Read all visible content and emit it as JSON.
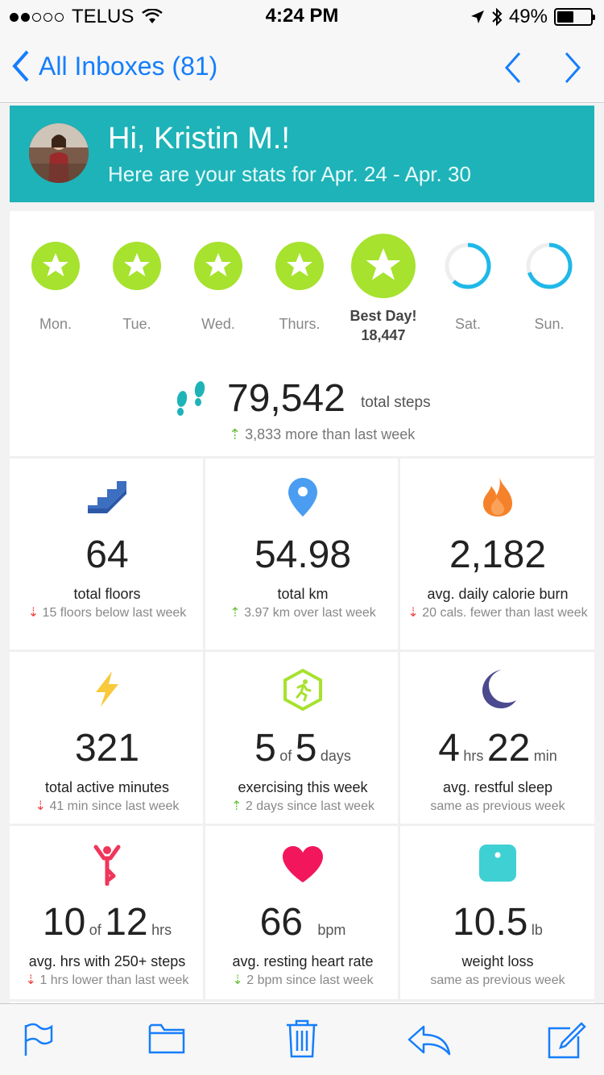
{
  "status_bar": {
    "carrier": "TELUS",
    "time": "4:24 PM",
    "battery": "49%",
    "battery_level": 0.49
  },
  "nav": {
    "back_label": "All Inboxes (81)"
  },
  "header": {
    "greeting": "Hi, Kristin M.!",
    "subtitle": "Here are your stats for Apr. 24 - Apr. 30",
    "color": "#1eb3b8"
  },
  "days": [
    {
      "label": "Mon.",
      "achieved": true
    },
    {
      "label": "Tue.",
      "achieved": true
    },
    {
      "label": "Wed.",
      "achieved": true
    },
    {
      "label": "Thurs.",
      "achieved": true
    },
    {
      "label": "Best Day!",
      "value": "18,447",
      "achieved": true,
      "best": true
    },
    {
      "label": "Sat.",
      "achieved": false,
      "progress": 0.62
    },
    {
      "label": "Sun.",
      "achieved": false,
      "progress": 0.7
    }
  ],
  "steps": {
    "total": "79,542",
    "unit": "total steps",
    "delta": "3,833 more than last week"
  },
  "tiles": [
    {
      "icon": "stairs-icon",
      "value": "64",
      "label": "total floors",
      "delta": "15 floors below last week",
      "dir": "down"
    },
    {
      "icon": "location-pin-icon",
      "value": "54.98",
      "label": "total km",
      "delta": "3.97 km over last week",
      "dir": "up"
    },
    {
      "icon": "flame-icon",
      "value": "2,182",
      "label": "avg. daily calorie burn",
      "delta": "20 cals. fewer than last week",
      "dir": "down"
    },
    {
      "icon": "lightning-icon",
      "value": "321",
      "label": "total active minutes",
      "delta": "41 min since last week",
      "dir": "down"
    },
    {
      "icon": "exercise-hexagon-icon",
      "value_a": "5",
      "of": "of",
      "value_b": "5",
      "unit": "days",
      "label": "exercising this week",
      "delta": "2 days since last week",
      "dir": "up"
    },
    {
      "icon": "moon-icon",
      "value_a": "4",
      "unit_a": "hrs",
      "value_b": "22",
      "unit_b": "min",
      "label": "avg. restful sleep",
      "delta": "same as previous week",
      "dir": "none"
    },
    {
      "icon": "person-active-icon",
      "value_a": "10",
      "of": "of",
      "value_b": "12",
      "unit": "hrs",
      "label": "avg. hrs with 250+ steps",
      "delta": "1 hrs lower than last week",
      "dir": "down"
    },
    {
      "icon": "heart-icon",
      "value": "66",
      "unit": "bpm",
      "label": "avg. resting heart rate",
      "delta": "2 bpm since last week",
      "dir": "down-green"
    },
    {
      "icon": "scale-icon",
      "value": "10.5",
      "unit": "lb",
      "label": "weight loss",
      "delta": "same as previous week",
      "dir": "none"
    }
  ],
  "toolbar": {
    "flag": "flag-icon",
    "folder": "folder-icon",
    "trash": "trash-icon",
    "reply": "reply-icon",
    "compose": "compose-icon"
  }
}
